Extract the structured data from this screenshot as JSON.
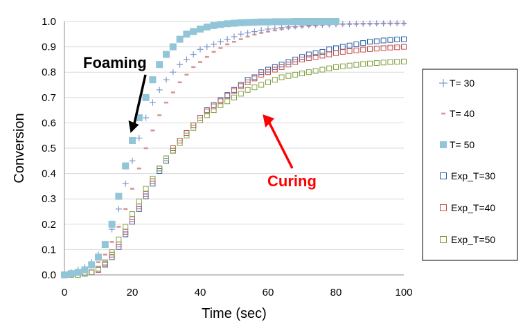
{
  "chart_data": {
    "type": "scatter",
    "title": "",
    "xlabel": "Time (sec)",
    "ylabel": "Conversion",
    "xlim": [
      0,
      100
    ],
    "ylim": [
      0,
      1.0
    ],
    "x_ticks": [
      "0",
      "20",
      "40",
      "60",
      "80",
      "100"
    ],
    "y_ticks": [
      "0.0",
      "0.1",
      "0.2",
      "0.3",
      "0.4",
      "0.5",
      "0.6",
      "0.7",
      "0.8",
      "0.9",
      "1.0"
    ],
    "grid": "horizontal",
    "legend_position": "right",
    "x": [
      0,
      2,
      4,
      6,
      8,
      10,
      12,
      14,
      16,
      18,
      20,
      22,
      24,
      26,
      28,
      30,
      32,
      34,
      36,
      38,
      40,
      42,
      44,
      46,
      48,
      50,
      52,
      54,
      56,
      58,
      60,
      62,
      64,
      66,
      68,
      70,
      72,
      74,
      76,
      78,
      80,
      82,
      84,
      86,
      88,
      90,
      92,
      94,
      96,
      98,
      100
    ],
    "series": [
      {
        "name": "T= 30",
        "marker": "plus",
        "color": "#7f96cb",
        "values": [
          0,
          0.01,
          0.02,
          0.03,
          0.05,
          0.08,
          0.12,
          0.18,
          0.26,
          0.36,
          0.45,
          0.54,
          0.62,
          0.68,
          0.73,
          0.77,
          0.8,
          0.83,
          0.85,
          0.87,
          0.89,
          0.9,
          0.91,
          0.92,
          0.93,
          0.94,
          0.95,
          0.955,
          0.96,
          0.965,
          0.97,
          0.973,
          0.976,
          0.979,
          0.981,
          0.983,
          0.985,
          0.986,
          0.987,
          0.988,
          0.989,
          0.99,
          0.99,
          0.991,
          0.991,
          0.992,
          0.992,
          0.992,
          0.993,
          0.993,
          0.993
        ]
      },
      {
        "name": "T= 40",
        "marker": "dash",
        "color": "#d99594",
        "values": [
          0,
          0.005,
          0.01,
          0.02,
          0.03,
          0.05,
          0.08,
          0.13,
          0.19,
          0.26,
          0.34,
          0.42,
          0.5,
          0.57,
          0.63,
          0.68,
          0.72,
          0.76,
          0.79,
          0.82,
          0.84,
          0.86,
          0.88,
          0.895,
          0.91,
          0.92,
          0.93,
          0.94,
          0.948,
          0.955,
          0.96,
          0.965,
          0.97,
          0.974,
          0.977,
          0.98,
          0.982,
          0.984,
          0.986,
          0.987,
          0.988,
          0.989,
          0.99,
          0.99,
          0.991,
          0.991,
          0.991,
          0.992,
          0.992,
          0.992,
          0.992
        ]
      },
      {
        "name": "T= 50",
        "marker": "filled-square",
        "color": "#92c5d7",
        "values": [
          0,
          0.005,
          0.01,
          0.02,
          0.04,
          0.07,
          0.12,
          0.2,
          0.31,
          0.43,
          0.53,
          0.62,
          0.7,
          0.77,
          0.83,
          0.87,
          0.9,
          0.93,
          0.95,
          0.96,
          0.97,
          0.978,
          0.984,
          0.988,
          0.991,
          0.993,
          0.995,
          0.996,
          0.997,
          0.998,
          0.998,
          0.999,
          0.999,
          0.999,
          1.0,
          1.0,
          1.0,
          1.0,
          1.0,
          1.0,
          1.0,
          null,
          null,
          null,
          null,
          null,
          null,
          null,
          null,
          null,
          null
        ]
      },
      {
        "name": "Exp_T=30",
        "marker": "open-square",
        "color": "#2e5fa8",
        "values": [
          0,
          0,
          0,
          0.005,
          0.01,
          0.02,
          0.04,
          0.07,
          0.11,
          0.16,
          0.21,
          0.26,
          0.31,
          0.36,
          0.41,
          0.45,
          0.49,
          0.53,
          0.56,
          0.59,
          0.62,
          0.65,
          0.67,
          0.69,
          0.71,
          0.73,
          0.75,
          0.77,
          0.78,
          0.8,
          0.81,
          0.82,
          0.83,
          0.84,
          0.85,
          0.86,
          0.87,
          0.875,
          0.88,
          0.89,
          0.895,
          0.9,
          0.905,
          0.91,
          0.915,
          0.92,
          0.922,
          0.925,
          0.927,
          0.929,
          0.93
        ]
      },
      {
        "name": "Exp_T=40",
        "marker": "open-square",
        "color": "#c0504d",
        "values": [
          0,
          0,
          0,
          0.005,
          0.01,
          0.02,
          0.045,
          0.08,
          0.12,
          0.17,
          0.22,
          0.27,
          0.32,
          0.37,
          0.42,
          0.46,
          0.5,
          0.53,
          0.56,
          0.59,
          0.62,
          0.645,
          0.665,
          0.685,
          0.705,
          0.725,
          0.745,
          0.76,
          0.775,
          0.79,
          0.8,
          0.81,
          0.82,
          0.83,
          0.84,
          0.85,
          0.855,
          0.86,
          0.865,
          0.87,
          0.875,
          0.88,
          0.883,
          0.886,
          0.889,
          0.891,
          0.893,
          0.895,
          0.897,
          0.898,
          0.9
        ]
      },
      {
        "name": "Exp_T=50",
        "marker": "open-square",
        "color": "#7f9f3f",
        "values": [
          0,
          0,
          0,
          0.005,
          0.01,
          0.025,
          0.05,
          0.09,
          0.14,
          0.19,
          0.24,
          0.29,
          0.34,
          0.38,
          0.42,
          0.46,
          0.49,
          0.52,
          0.55,
          0.58,
          0.61,
          0.63,
          0.65,
          0.67,
          0.685,
          0.7,
          0.715,
          0.73,
          0.74,
          0.75,
          0.76,
          0.77,
          0.78,
          0.785,
          0.79,
          0.795,
          0.8,
          0.805,
          0.81,
          0.815,
          0.82,
          0.823,
          0.826,
          0.829,
          0.832,
          0.834,
          0.836,
          0.838,
          0.84,
          0.841,
          0.842
        ]
      }
    ],
    "annotations": [
      {
        "text": "Foaming",
        "color": "#000000",
        "arrow_to": [
          19.5,
          0.56
        ]
      },
      {
        "text": "Curing",
        "color": "#ff0000",
        "arrow_to": [
          58,
          0.62
        ]
      }
    ]
  }
}
